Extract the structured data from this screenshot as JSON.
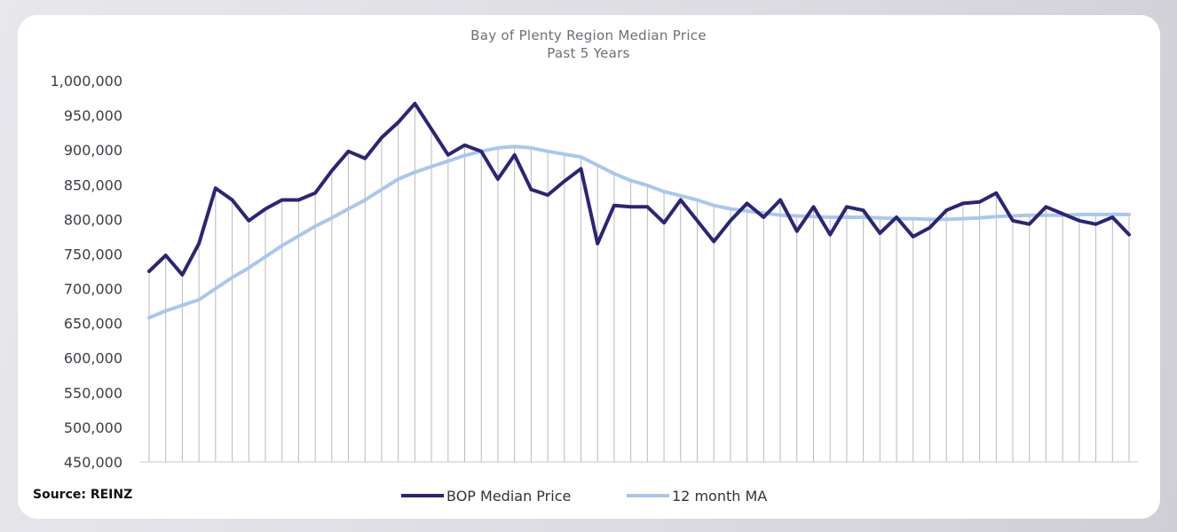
{
  "source_label": "Source: REINZ",
  "colors": {
    "median": "#2b2575",
    "ma": "#a9c7ee",
    "gridline": "#b9b9bf",
    "axis": "#c8c8cc"
  },
  "chart_data": {
    "type": "line",
    "title": "Bay of Plenty Region Median Price",
    "subtitle": "Past 5 Years",
    "xlabel": "",
    "ylabel": "",
    "ylim": [
      450000,
      1000000
    ],
    "yticks": [
      1000000,
      950000,
      900000,
      850000,
      800000,
      750000,
      700000,
      650000,
      600000,
      550000,
      500000,
      450000
    ],
    "ytick_labels": [
      "1,000,000",
      "950,000",
      "900,000",
      "850,000",
      "800,000",
      "750,000",
      "700,000",
      "650,000",
      "600,000",
      "550,000",
      "500,000",
      "450,000"
    ],
    "grid": "vertical",
    "legend": "bottom",
    "series": [
      {
        "name": "BOP Median Price",
        "values": [
          725000,
          748000,
          720000,
          765000,
          845000,
          828000,
          798000,
          815000,
          828000,
          828000,
          838000,
          870000,
          898000,
          888000,
          918000,
          940000,
          967000,
          930000,
          893000,
          907000,
          898000,
          858000,
          893000,
          843000,
          835000,
          855000,
          873000,
          765000,
          820000,
          818000,
          818000,
          795000,
          828000,
          798000,
          768000,
          798000,
          823000,
          803000,
          828000,
          783000,
          818000,
          778000,
          818000,
          813000,
          780000,
          803000,
          775000,
          788000,
          813000,
          823000,
          825000,
          838000,
          798000,
          793000,
          818000,
          808000,
          798000,
          793000,
          803000,
          778000
        ]
      },
      {
        "name": "12 month MA",
        "values": [
          658000,
          668000,
          676000,
          684000,
          700000,
          716000,
          730000,
          746000,
          762000,
          776000,
          790000,
          802000,
          815000,
          828000,
          843000,
          858000,
          868000,
          876000,
          884000,
          892000,
          898000,
          903000,
          905000,
          903000,
          898000,
          894000,
          890000,
          878000,
          866000,
          856000,
          849000,
          840000,
          834000,
          828000,
          820000,
          815000,
          812000,
          809000,
          806000,
          805000,
          804000,
          803000,
          803000,
          803000,
          802000,
          801000,
          801000,
          800000,
          800000,
          801000,
          802000,
          804000,
          805000,
          806000,
          806000,
          806000,
          807000,
          807000,
          807000,
          807000
        ]
      }
    ]
  }
}
